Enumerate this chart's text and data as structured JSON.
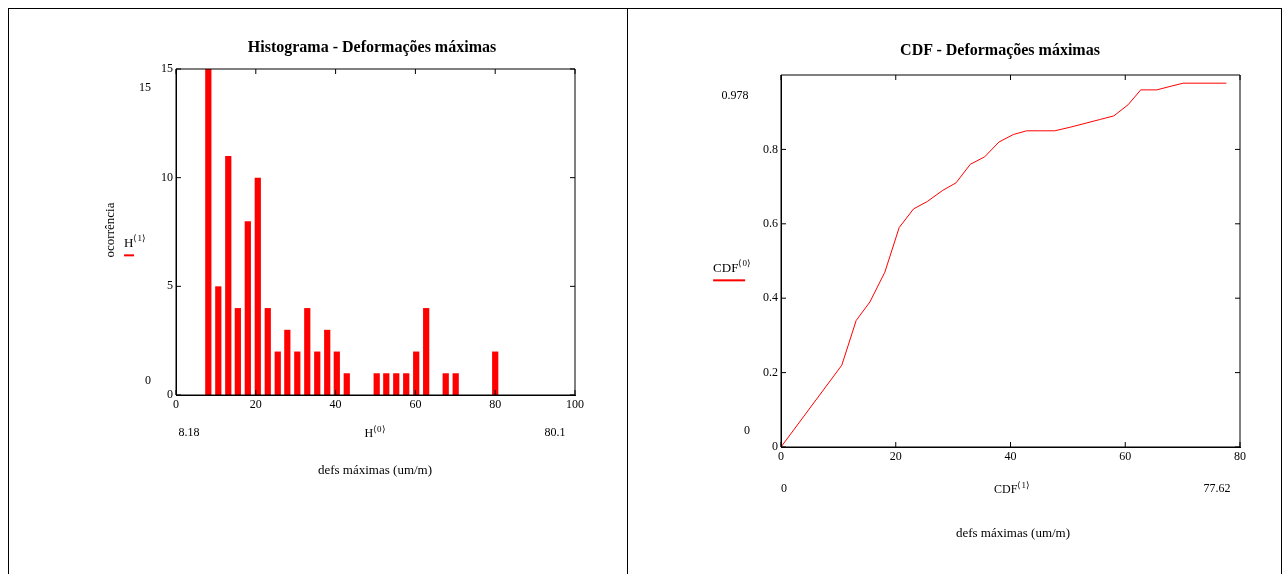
{
  "chart_data": [
    {
      "type": "bar",
      "title": "Histograma - Deformações máximas",
      "xlabel": "defs máximas (um/m)",
      "ylabel": "ocorrência",
      "x": [
        8.1,
        10.6,
        13.1,
        15.5,
        18.0,
        20.5,
        23.0,
        25.5,
        27.9,
        30.4,
        32.9,
        35.4,
        37.9,
        40.3,
        42.8,
        45.3,
        47.8,
        50.3,
        52.7,
        55.2,
        57.7,
        60.2,
        62.7,
        65.1,
        67.6,
        70.1,
        72.6,
        75.1,
        77.5,
        80.0
      ],
      "series": [
        {
          "name": "H$^{⟨1⟩}$",
          "color": "#ff0000",
          "values": [
            15,
            5,
            11,
            4,
            8,
            10,
            4,
            2,
            3,
            2,
            4,
            2,
            3,
            2,
            1,
            0,
            0,
            1,
            1,
            1,
            1,
            2,
            4,
            0,
            1,
            1,
            0,
            0,
            0,
            2
          ]
        }
      ],
      "xlim": [
        0,
        100
      ],
      "xticks": [
        0,
        20,
        40,
        60,
        80,
        100
      ],
      "ylim": [
        0,
        15
      ],
      "yticks": [
        0,
        5,
        10,
        15
      ],
      "grid": false,
      "legend": "left",
      "annotations": [
        "15",
        "0",
        "8.18",
        "80.1",
        "H$^{⟨0⟩}$"
      ]
    },
    {
      "type": "line",
      "title": "CDF - Deformações máximas",
      "xlabel": "defs máximas (um/m)",
      "x": [
        0,
        10.6,
        13.1,
        15.5,
        18.1,
        20.6,
        23.1,
        25.5,
        28.2,
        30.5,
        33.0,
        35.5,
        38.0,
        40.5,
        42.8,
        47.7,
        50.5,
        53.0,
        55.5,
        58.0,
        60.5,
        62.7,
        65.5,
        68.0,
        70.1,
        77.62
      ],
      "series": [
        {
          "name": "CDF$^{⟨0⟩}$",
          "color": "#ff0000",
          "values": [
            0,
            0.22,
            0.34,
            0.39,
            0.47,
            0.59,
            0.64,
            0.66,
            0.69,
            0.71,
            0.76,
            0.78,
            0.82,
            0.84,
            0.85,
            0.85,
            0.86,
            0.87,
            0.88,
            0.89,
            0.92,
            0.96,
            0.96,
            0.97,
            0.978,
            0.978
          ]
        }
      ],
      "xlim": [
        0,
        80
      ],
      "xticks": [
        0,
        20,
        40,
        60,
        80
      ],
      "ylim": [
        0,
        1
      ],
      "yticks": [
        0,
        0.2,
        0.4,
        0.6,
        0.8
      ],
      "grid": false,
      "legend": "left",
      "marker": "none",
      "line_style": "solid",
      "annotations": [
        "0.978",
        "0",
        "0",
        "77.62",
        "CDF$^{⟨1⟩}$"
      ]
    }
  ]
}
